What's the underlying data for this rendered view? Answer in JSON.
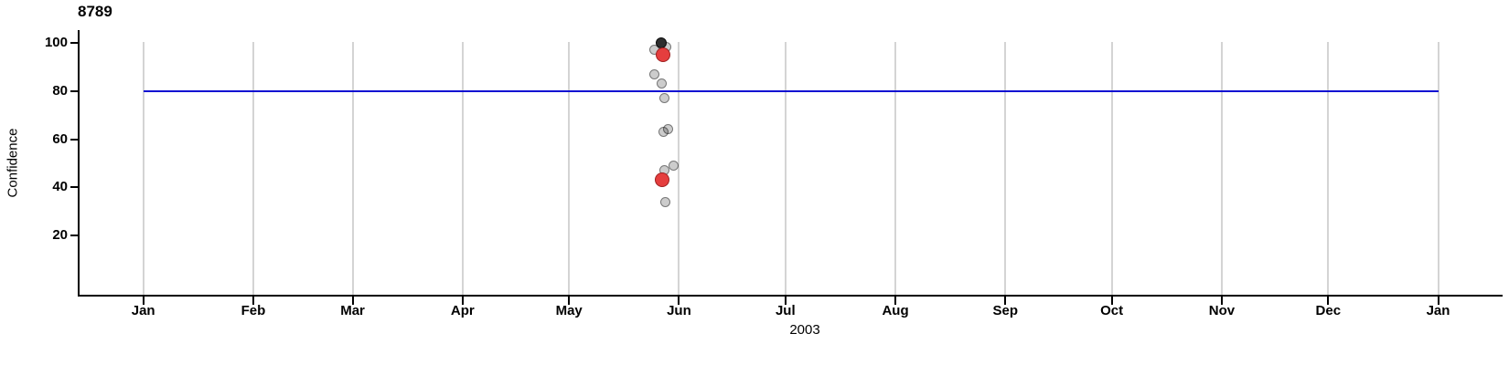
{
  "chart_data": {
    "type": "scatter",
    "title": "8789",
    "ylabel": "Confidence",
    "xlabel": "2003",
    "x_axis": {
      "start": "2003-01-01",
      "end": "2004-01-01",
      "ticks": [
        {
          "label": "Jan",
          "day": 0
        },
        {
          "label": "Feb",
          "day": 31
        },
        {
          "label": "Mar",
          "day": 59
        },
        {
          "label": "Apr",
          "day": 90
        },
        {
          "label": "May",
          "day": 120
        },
        {
          "label": "Jun",
          "day": 151
        },
        {
          "label": "Jul",
          "day": 181
        },
        {
          "label": "Aug",
          "day": 212
        },
        {
          "label": "Sep",
          "day": 243
        },
        {
          "label": "Oct",
          "day": 273
        },
        {
          "label": "Nov",
          "day": 304
        },
        {
          "label": "Dec",
          "day": 334
        },
        {
          "label": "Jan",
          "day": 365
        }
      ]
    },
    "y_axis": {
      "ticks": [
        100,
        80,
        60,
        40,
        20
      ],
      "range": [
        0,
        105
      ]
    },
    "grid": "vertical-month-lines",
    "legend": "none",
    "reference_line": {
      "y": 80,
      "color": "#0f0fd2",
      "start_day": 0,
      "end_day": 365
    },
    "series_styles": {
      "gray": {
        "fill": "rgba(0,0,0,0.20)",
        "stroke": "rgba(0,0,0,0.42)",
        "diameter": 11
      },
      "black": {
        "fill": "#2e2e2e",
        "stroke": "#0a0a0a",
        "diameter": 12
      },
      "red": {
        "fill": "#e53e3e",
        "stroke": "#9e2121",
        "diameter": 16
      }
    },
    "points": [
      {
        "date": "2003-05-28",
        "day": 147.5,
        "value": 98,
        "series": "gray"
      },
      {
        "date": "2003-05-25",
        "day": 144.0,
        "value": 97,
        "series": "gray"
      },
      {
        "date": "2003-05-25",
        "day": 144.0,
        "value": 87,
        "series": "gray"
      },
      {
        "date": "2003-05-27",
        "day": 146.0,
        "value": 83,
        "series": "gray"
      },
      {
        "date": "2003-05-28",
        "day": 147.0,
        "value": 77,
        "series": "gray"
      },
      {
        "date": "2003-05-27",
        "day": 146.7,
        "value": 63,
        "series": "gray"
      },
      {
        "date": "2003-05-29",
        "day": 148.0,
        "value": 64,
        "series": "gray"
      },
      {
        "date": "2003-05-30",
        "day": 149.4,
        "value": 49,
        "series": "gray"
      },
      {
        "date": "2003-05-27",
        "day": 146.8,
        "value": 47,
        "series": "gray"
      },
      {
        "date": "2003-05-28",
        "day": 147.2,
        "value": 34,
        "series": "gray"
      },
      {
        "date": "2003-05-27",
        "day": 146.0,
        "value": 100,
        "series": "black"
      },
      {
        "date": "2003-05-27",
        "day": 146.5,
        "value": 95,
        "series": "red"
      },
      {
        "date": "2003-05-27",
        "day": 146.3,
        "value": 43,
        "series": "red"
      }
    ]
  }
}
